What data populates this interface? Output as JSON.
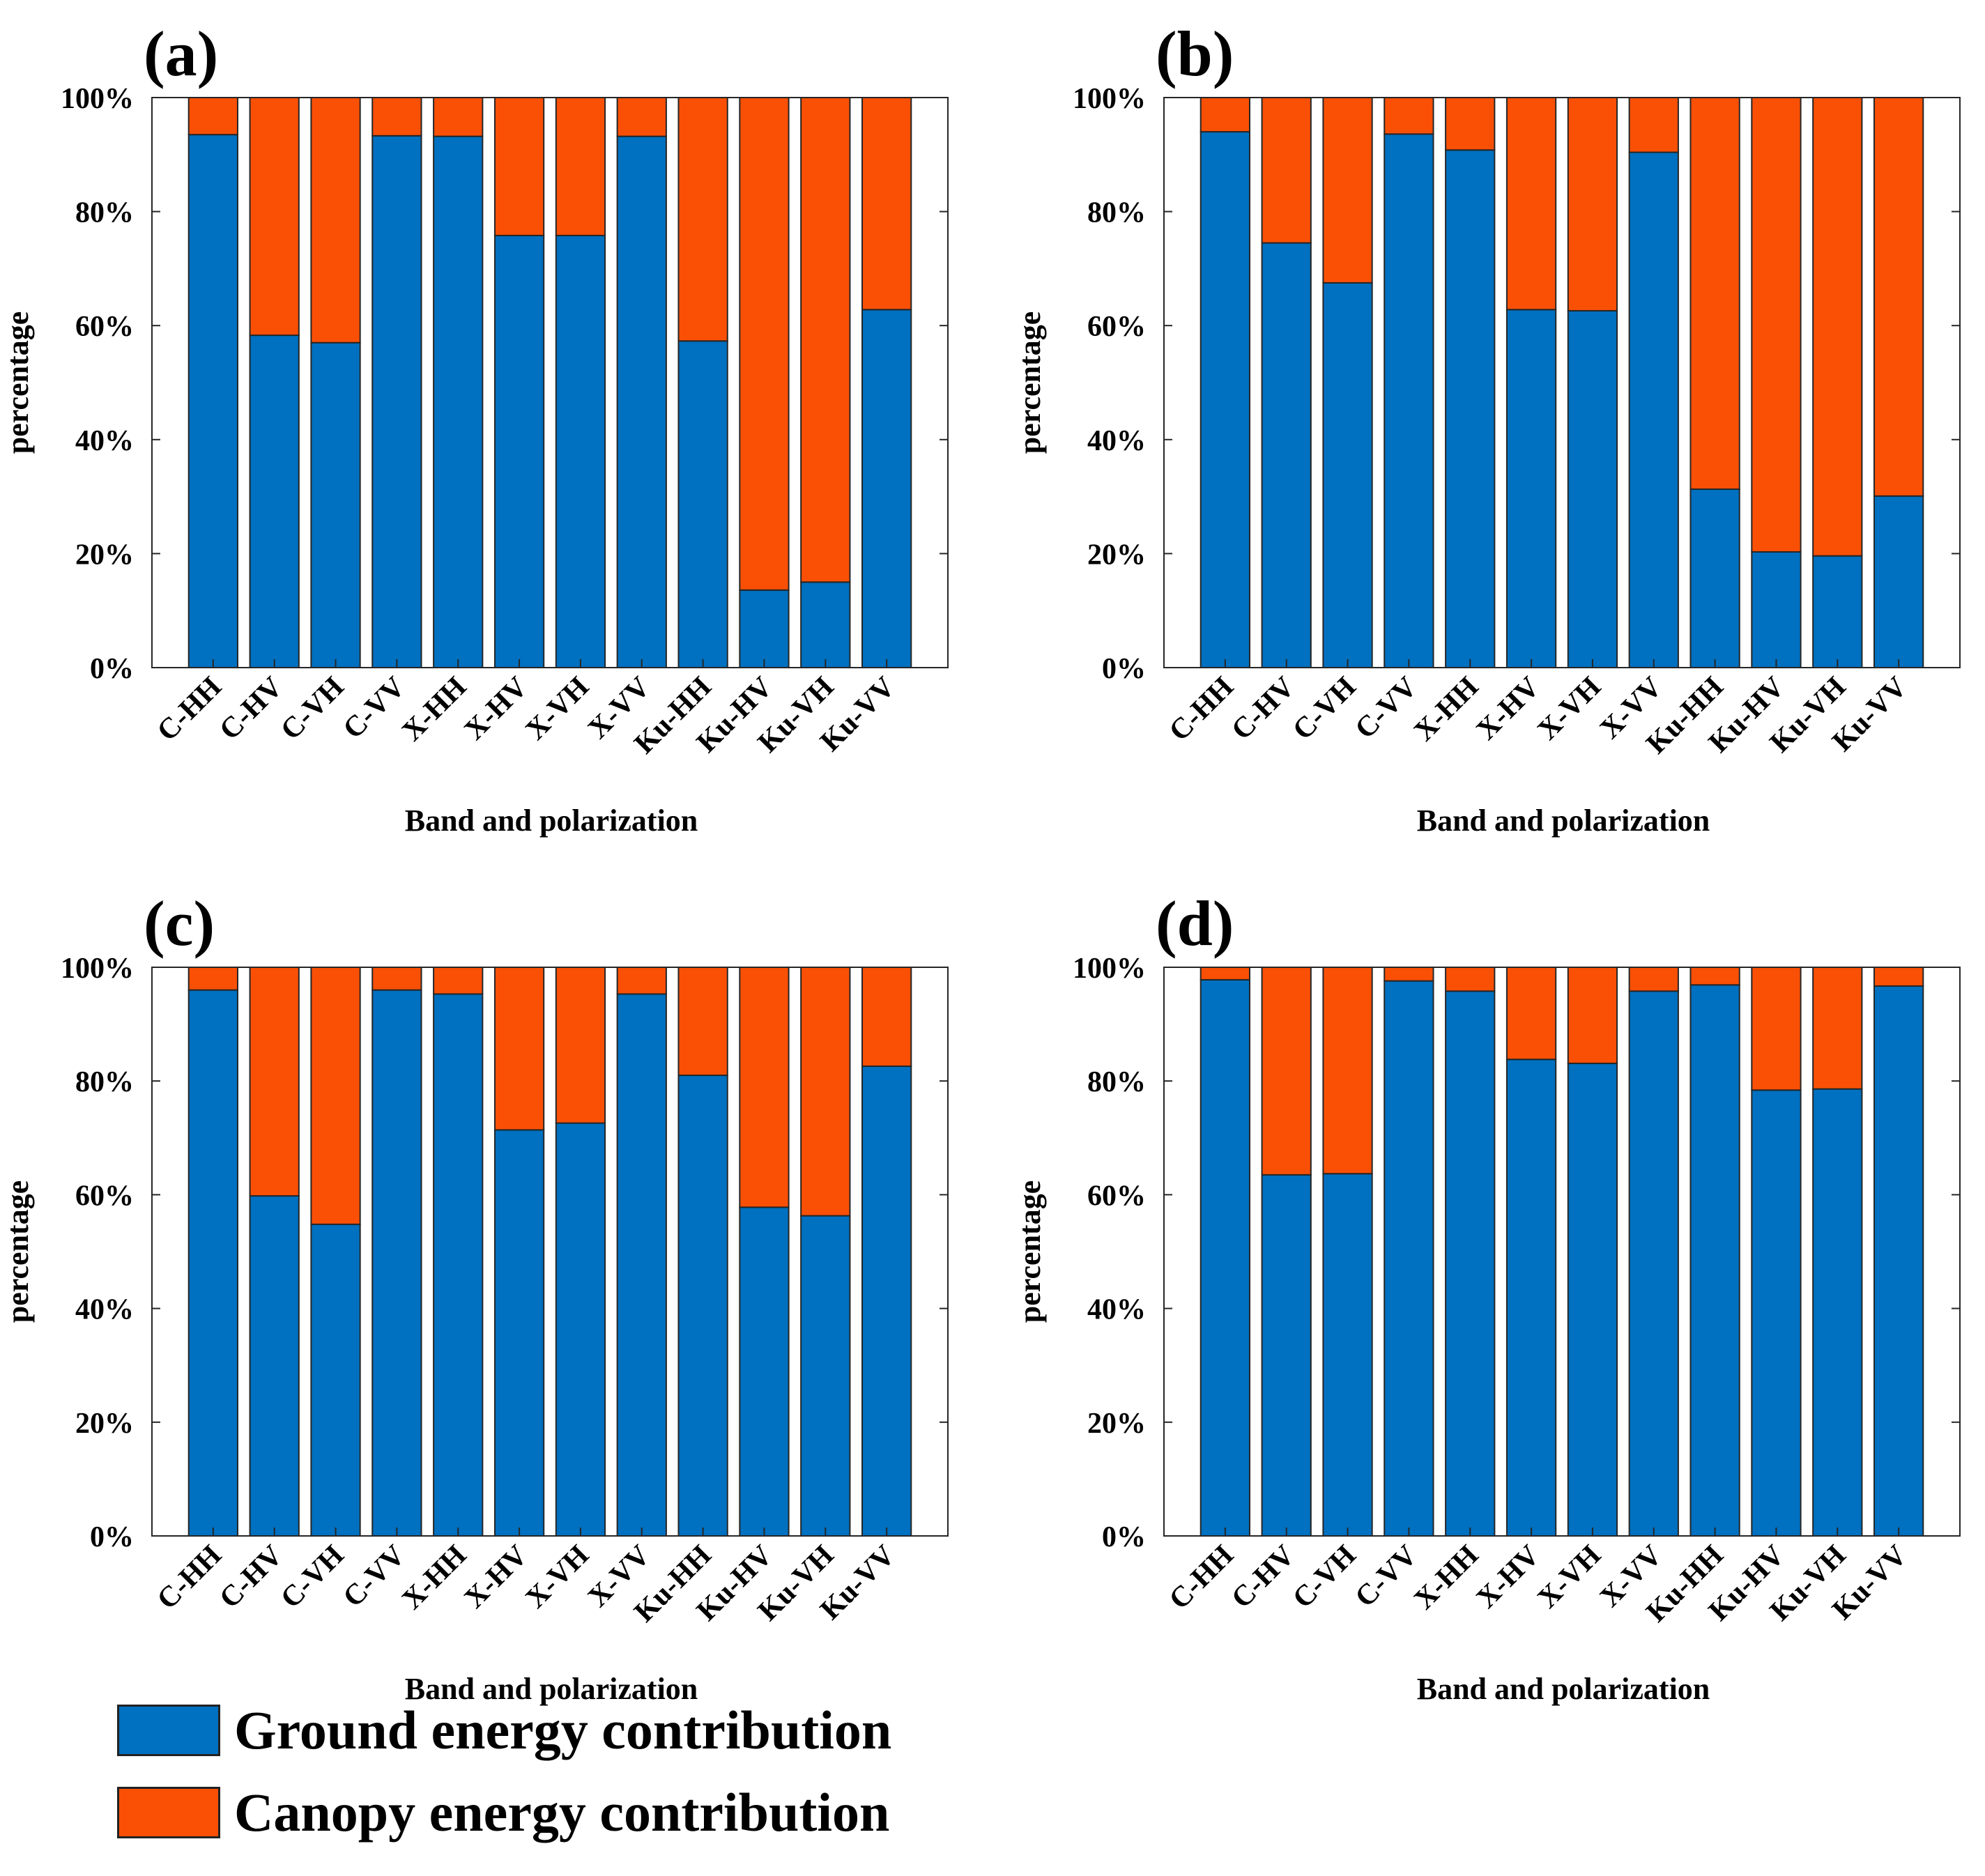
{
  "colors": {
    "ground": "#0070C0",
    "canopy": "#F95006",
    "axis": "#262626",
    "text": "#000000"
  },
  "legend": {
    "ground_label": "Ground energy contribution",
    "canopy_label": "Canopy energy contribution"
  },
  "chart_data": [
    {
      "panel": "(a)",
      "type": "bar",
      "stacked": true,
      "categories": [
        "C-HH",
        "C-HV",
        "C-VH",
        "C-VV",
        "X-HH",
        "X-HV",
        "X-VH",
        "X-VV",
        "Ku-HH",
        "Ku-HV",
        "Ku-VH",
        "Ku-VV"
      ],
      "series": [
        {
          "name": "Ground energy contribution",
          "values": [
            93.5,
            58.3,
            57.0,
            93.3,
            93.2,
            75.8,
            75.8,
            93.2,
            57.3,
            13.6,
            15.0,
            62.8
          ]
        },
        {
          "name": "Canopy energy contribution",
          "values": [
            6.5,
            41.7,
            43.0,
            6.7,
            6.8,
            24.2,
            24.2,
            6.8,
            42.7,
            86.4,
            85.0,
            37.2
          ]
        }
      ],
      "xlabel": "Band and polarization",
      "ylabel": "percentage",
      "ylim": [
        0,
        100
      ],
      "yticks": [
        "0%",
        "20%",
        "40%",
        "60%",
        "80%",
        "100%"
      ]
    },
    {
      "panel": "(b)",
      "type": "bar",
      "stacked": true,
      "categories": [
        "C-HH",
        "C-HV",
        "C-VH",
        "C-VV",
        "X-HH",
        "X-HV",
        "X-VH",
        "X-VV",
        "Ku-HH",
        "Ku-HV",
        "Ku-VH",
        "Ku-VV"
      ],
      "series": [
        {
          "name": "Ground energy contribution",
          "values": [
            94.0,
            74.5,
            67.5,
            93.6,
            90.8,
            62.8,
            62.6,
            90.4,
            31.3,
            20.3,
            19.6,
            30.1
          ]
        },
        {
          "name": "Canopy energy contribution",
          "values": [
            6.0,
            25.5,
            32.5,
            6.4,
            9.2,
            37.2,
            37.4,
            9.6,
            68.7,
            79.7,
            80.4,
            69.9
          ]
        }
      ],
      "xlabel": "Band and polarization",
      "ylabel": "percentage",
      "ylim": [
        0,
        100
      ],
      "yticks": [
        "0%",
        "20%",
        "40%",
        "60%",
        "80%",
        "100%"
      ]
    },
    {
      "panel": "(c)",
      "type": "bar",
      "stacked": true,
      "categories": [
        "C-HH",
        "C-HV",
        "C-VH",
        "C-VV",
        "X-HH",
        "X-HV",
        "X-VH",
        "X-VV",
        "Ku-HH",
        "Ku-HV",
        "Ku-VH",
        "Ku-VV"
      ],
      "series": [
        {
          "name": "Ground energy contribution",
          "values": [
            96.0,
            59.8,
            54.8,
            96.0,
            95.3,
            71.4,
            72.6,
            95.3,
            81.0,
            57.8,
            56.3,
            82.6
          ]
        },
        {
          "name": "Canopy energy contribution",
          "values": [
            4.0,
            40.2,
            45.2,
            4.0,
            4.7,
            28.6,
            27.4,
            4.7,
            19.0,
            42.2,
            43.7,
            17.4
          ]
        }
      ],
      "xlabel": "Band and polarization",
      "ylabel": "percentage",
      "ylim": [
        0,
        100
      ],
      "yticks": [
        "0%",
        "20%",
        "40%",
        "60%",
        "80%",
        "100%"
      ]
    },
    {
      "panel": "(d)",
      "type": "bar",
      "stacked": true,
      "categories": [
        "C-HH",
        "C-HV",
        "C-VH",
        "C-VV",
        "X-HH",
        "X-HV",
        "X-VH",
        "X-VV",
        "Ku-HH",
        "Ku-HV",
        "Ku-VH",
        "Ku-VV"
      ],
      "series": [
        {
          "name": "Ground energy contribution",
          "values": [
            97.8,
            63.5,
            63.7,
            97.6,
            95.8,
            83.8,
            83.1,
            95.8,
            96.9,
            78.4,
            78.6,
            96.7
          ]
        },
        {
          "name": "Canopy energy contribution",
          "values": [
            2.2,
            36.5,
            36.3,
            2.4,
            4.2,
            16.2,
            16.9,
            4.2,
            3.1,
            21.6,
            21.4,
            3.3
          ]
        }
      ],
      "xlabel": "Band and polarization",
      "ylabel": "percentage",
      "ylim": [
        0,
        100
      ],
      "yticks": [
        "0%",
        "20%",
        "40%",
        "60%",
        "80%",
        "100%"
      ]
    }
  ]
}
